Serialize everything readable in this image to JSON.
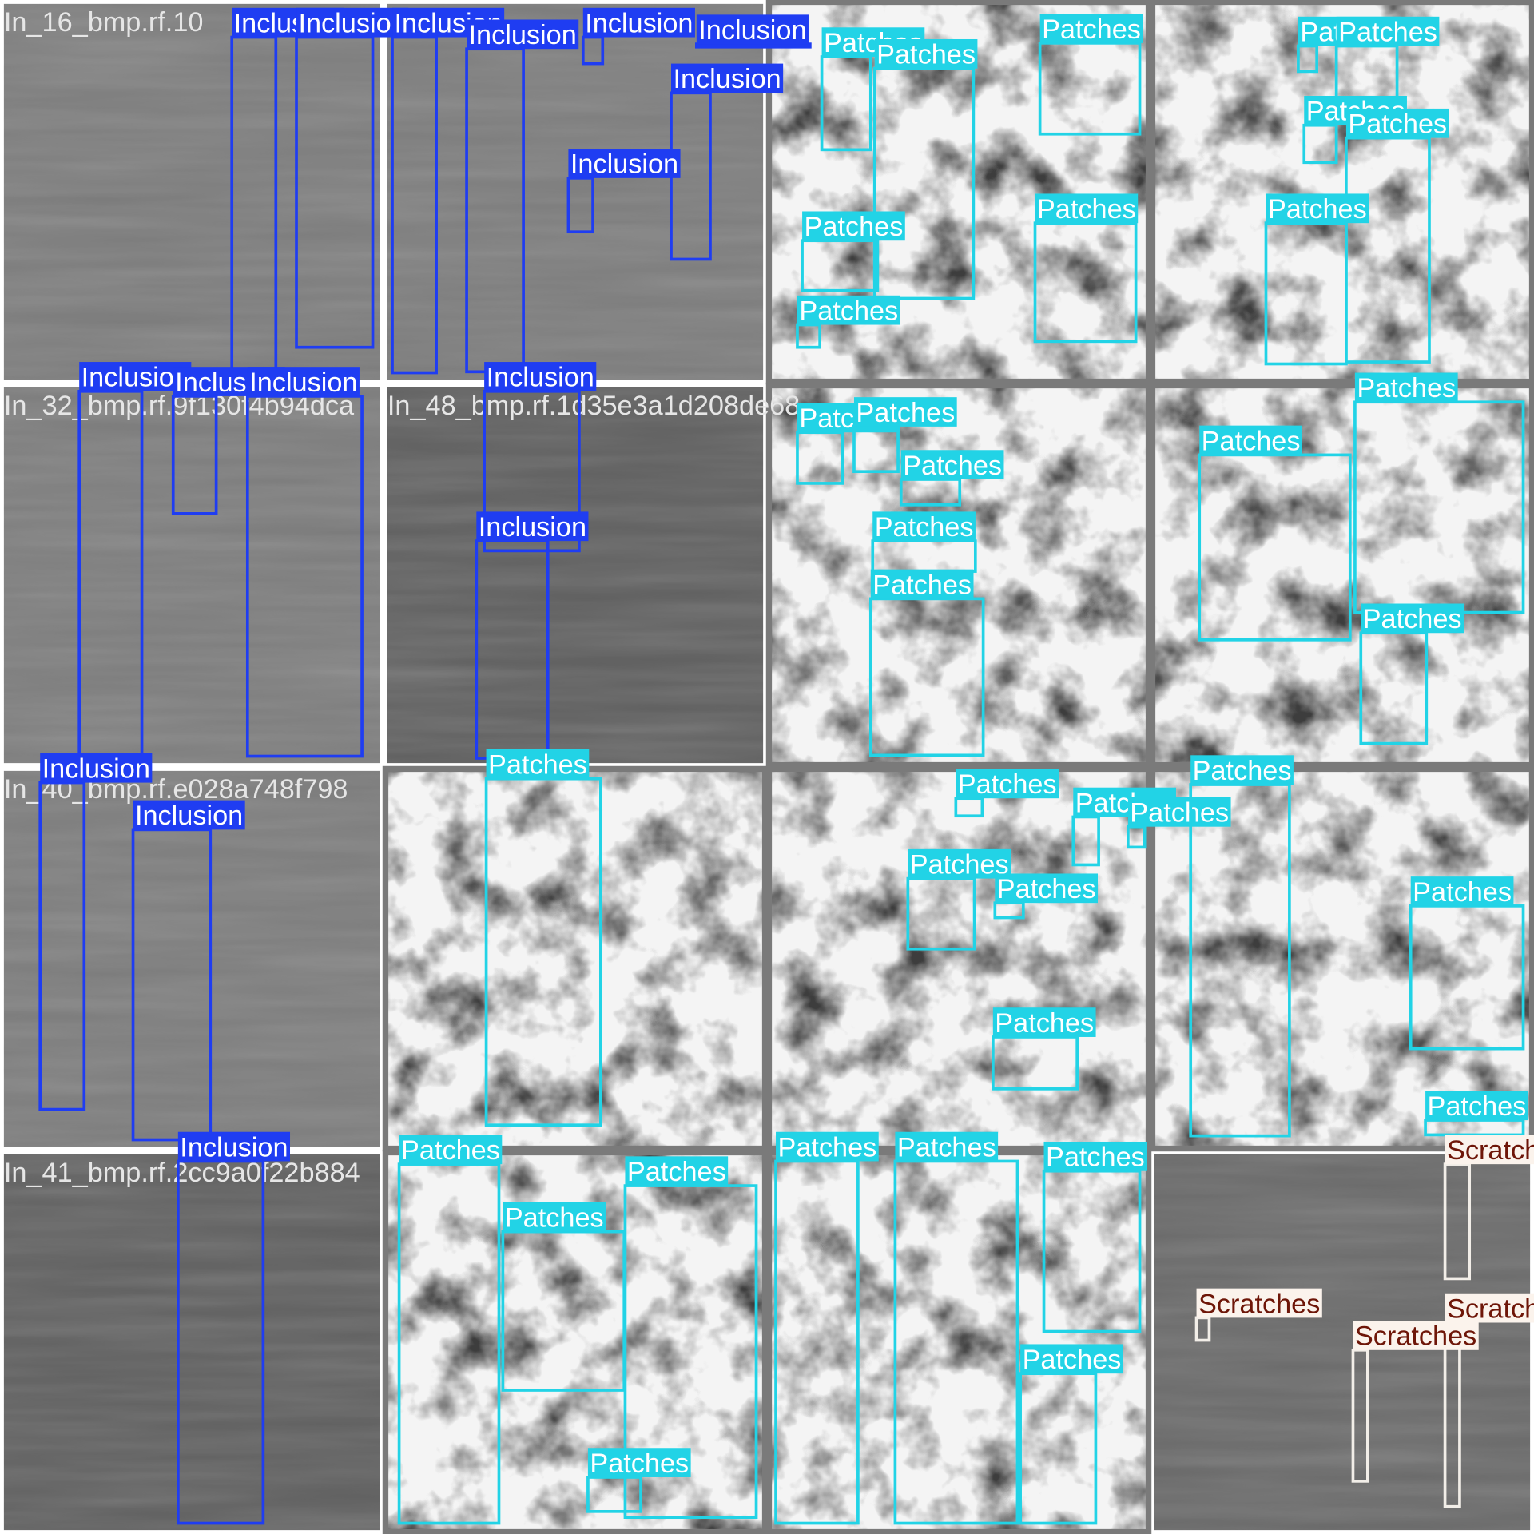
{
  "tiles": [
    {
      "filename": "In_16_bmp.rf.10",
      "boxes": [
        "Inclusion",
        "Inclusion"
      ]
    },
    {
      "boxes": [
        "Inclusion",
        "Inclusion",
        "Inclusion",
        "Inclusion",
        "Inclusion",
        "Inclusion"
      ]
    },
    {
      "boxes": [
        "Patches",
        "Patches",
        "Patches",
        "Patches",
        "Patches",
        "Patches"
      ]
    },
    {
      "boxes": [
        "Patches",
        "Patches",
        "Patches",
        "Patches",
        "Patches"
      ]
    },
    {
      "filename": "In_32_bmp.rf.9f130f4b94dca",
      "boxes": [
        "Inclusion",
        "Inclusion",
        "Inclusion"
      ]
    },
    {
      "filename": "In_48_bmp.rf.1d35e3a1d208de68",
      "boxes": [
        "Inclusion",
        "Inclusion"
      ]
    },
    {
      "boxes": [
        "Patches",
        "Patches",
        "Patches",
        "Patches",
        "Patches"
      ]
    },
    {
      "boxes": [
        "Patches",
        "Patches",
        "Patches"
      ]
    },
    {
      "filename": "In_40_bmp.rf.e028a748f798",
      "boxes": [
        "Inclusion",
        "Inclusion"
      ]
    },
    {
      "boxes": [
        "Patches"
      ]
    },
    {
      "boxes": [
        "Patches",
        "Patches",
        "Patches",
        "Patches",
        "Patches",
        "Patches"
      ]
    },
    {
      "boxes": [
        "Patches",
        "Patches",
        "Patches"
      ]
    },
    {
      "filename": "In_41_bmp.rf.2cc9a0f22b884",
      "boxes": [
        "Inclusion"
      ]
    },
    {
      "boxes": [
        "Patches",
        "Patches",
        "Patches",
        "Patches"
      ]
    },
    {
      "boxes": [
        "Patches",
        "Patches",
        "Patches",
        "Patches"
      ]
    },
    {
      "boxes": [
        "Scratches",
        "Scratches",
        "Scratches",
        "Scratches"
      ]
    }
  ]
}
